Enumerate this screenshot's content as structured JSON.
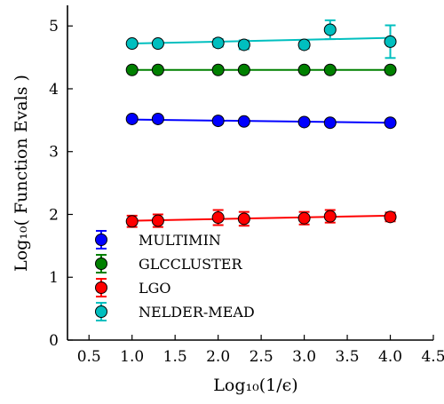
{
  "chart_data": {
    "type": "scatter",
    "xlabel": "Log₁₀(1/ϵ)",
    "ylabel": "Log₁₀( Function Evals )",
    "xlim": [
      0.25,
      4.5
    ],
    "ylim": [
      0,
      5.3
    ],
    "xticks": [
      "0.5",
      "1.0",
      "1.5",
      "2.0",
      "2.5",
      "3.0",
      "3.5",
      "4.0",
      "4.5"
    ],
    "xtick_values": [
      0.5,
      1.0,
      1.5,
      2.0,
      2.5,
      3.0,
      3.5,
      4.0,
      4.5
    ],
    "yticks": [
      "0",
      "1",
      "2",
      "3",
      "4",
      "5"
    ],
    "ytick_values": [
      0,
      1,
      2,
      3,
      4,
      5
    ],
    "grid": false,
    "legend_position": "lower-left",
    "x": [
      1.0,
      1.301,
      2.0,
      2.301,
      3.0,
      3.301,
      4.0
    ],
    "series": [
      {
        "name": "MULTIMIN",
        "color": "#0000ff",
        "values": [
          3.52,
          3.52,
          3.49,
          3.48,
          3.47,
          3.46,
          3.46
        ],
        "errors": [
          0.03,
          0.03,
          0.03,
          0.03,
          0.03,
          0.03,
          0.03
        ],
        "fit": [
          3.51,
          3.46
        ]
      },
      {
        "name": "GLCCLUSTER",
        "color": "#008000",
        "values": [
          4.3,
          4.3,
          4.3,
          4.3,
          4.3,
          4.3,
          4.3
        ],
        "errors": [
          0.02,
          0.02,
          0.02,
          0.02,
          0.02,
          0.02,
          0.02
        ],
        "fit": [
          4.3,
          4.3
        ]
      },
      {
        "name": "LGO",
        "color": "#ff0000",
        "values": [
          1.89,
          1.9,
          1.95,
          1.93,
          1.94,
          1.97,
          1.96
        ],
        "errors": [
          0.09,
          0.1,
          0.12,
          0.11,
          0.1,
          0.1,
          0.07
        ],
        "fit": [
          1.9,
          1.98
        ]
      },
      {
        "name": "NELDER-MEAD",
        "color": "#00bfbf",
        "values": [
          4.72,
          4.72,
          4.73,
          4.7,
          4.7,
          4.94,
          4.75
        ],
        "errors": [
          0.04,
          0.04,
          0.06,
          0.07,
          0.06,
          0.15,
          0.26
        ],
        "fit": [
          4.72,
          4.81
        ]
      }
    ]
  }
}
